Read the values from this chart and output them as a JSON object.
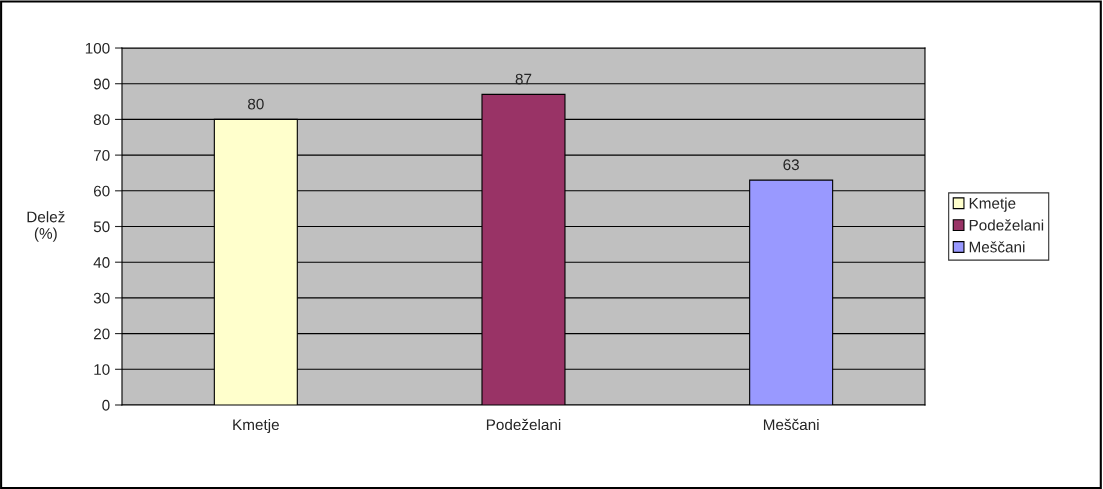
{
  "chart_data": {
    "type": "bar",
    "ylabel": "Delež\n(%)",
    "categories": [
      "Kmetje",
      "Podeželani",
      "Meščani"
    ],
    "series": [
      {
        "name": "Kmetje",
        "color": "#ffffcc",
        "values": [
          80,
          null,
          null
        ]
      },
      {
        "name": "Podeželani",
        "color": "#993366",
        "values": [
          null,
          87,
          null
        ]
      },
      {
        "name": "Meščani",
        "color": "#9999ff",
        "values": [
          null,
          null,
          63
        ]
      }
    ],
    "ylim": [
      0,
      100
    ],
    "yticks": [
      0,
      10,
      20,
      30,
      40,
      50,
      60,
      70,
      80,
      90,
      100
    ],
    "grid": "y",
    "legend": "right",
    "data_labels": true
  }
}
